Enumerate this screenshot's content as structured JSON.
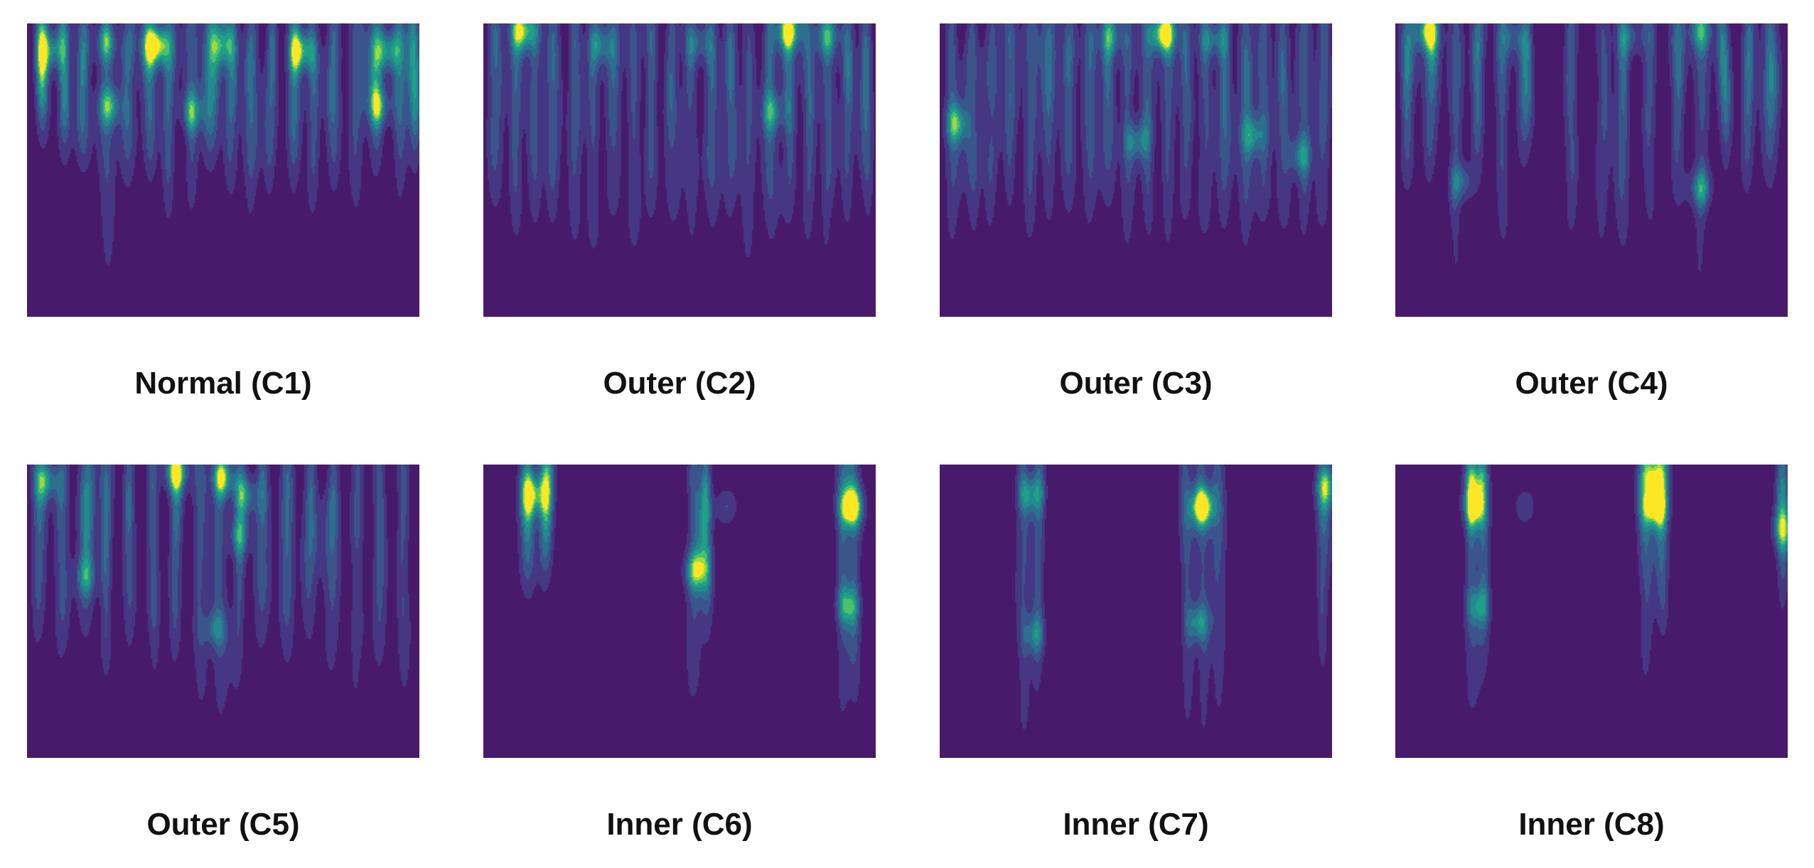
{
  "panels": [
    {
      "label": "Normal (C1)",
      "hotspots": [
        [
          0.33,
          0.07,
          1.0
        ],
        [
          0.7,
          0.09,
          0.75
        ],
        [
          0.92,
          0.09,
          0.65
        ],
        [
          0.06,
          0.09,
          0.6
        ],
        [
          0.2,
          0.06,
          0.55
        ],
        [
          0.5,
          0.07,
          0.5
        ],
        [
          0.21,
          0.28,
          0.6
        ],
        [
          0.9,
          0.28,
          0.6
        ],
        [
          0.42,
          0.3,
          0.55
        ]
      ],
      "streaks": [
        [
          0.04,
          0.3
        ],
        [
          0.09,
          0.38
        ],
        [
          0.14,
          0.42
        ],
        [
          0.2,
          0.74
        ],
        [
          0.26,
          0.5
        ],
        [
          0.31,
          0.44
        ],
        [
          0.36,
          0.56
        ],
        [
          0.42,
          0.6
        ],
        [
          0.47,
          0.4
        ],
        [
          0.52,
          0.5
        ],
        [
          0.57,
          0.58
        ],
        [
          0.62,
          0.52
        ],
        [
          0.68,
          0.48
        ],
        [
          0.73,
          0.56
        ],
        [
          0.78,
          0.5
        ],
        [
          0.84,
          0.6
        ],
        [
          0.89,
          0.44
        ],
        [
          0.95,
          0.52
        ],
        [
          0.99,
          0.4
        ]
      ]
    },
    {
      "label": "Outer (C2)",
      "hotspots": [
        [
          0.1,
          0.02,
          0.8
        ],
        [
          0.78,
          0.02,
          0.85
        ],
        [
          0.88,
          0.04,
          0.5
        ],
        [
          0.3,
          0.07,
          0.45
        ],
        [
          0.55,
          0.06,
          0.45
        ],
        [
          0.74,
          0.3,
          0.5
        ]
      ],
      "streaks": [
        [
          0.03,
          0.58
        ],
        [
          0.08,
          0.64
        ],
        [
          0.13,
          0.62
        ],
        [
          0.18,
          0.58
        ],
        [
          0.23,
          0.66
        ],
        [
          0.28,
          0.72
        ],
        [
          0.33,
          0.6
        ],
        [
          0.38,
          0.7
        ],
        [
          0.43,
          0.62
        ],
        [
          0.48,
          0.6
        ],
        [
          0.53,
          0.68
        ],
        [
          0.58,
          0.64
        ],
        [
          0.63,
          0.58
        ],
        [
          0.68,
          0.72
        ],
        [
          0.73,
          0.66
        ],
        [
          0.78,
          0.6
        ],
        [
          0.83,
          0.66
        ],
        [
          0.88,
          0.7
        ],
        [
          0.93,
          0.62
        ],
        [
          0.98,
          0.58
        ]
      ]
    },
    {
      "label": "Outer (C3)",
      "hotspots": [
        [
          0.57,
          0.03,
          1.0
        ],
        [
          0.44,
          0.04,
          0.45
        ],
        [
          0.7,
          0.05,
          0.5
        ],
        [
          0.04,
          0.34,
          0.65
        ],
        [
          0.5,
          0.4,
          0.55
        ],
        [
          0.8,
          0.38,
          0.5
        ],
        [
          0.92,
          0.45,
          0.5
        ]
      ],
      "streaks": [
        [
          0.03,
          0.7
        ],
        [
          0.08,
          0.62
        ],
        [
          0.13,
          0.66
        ],
        [
          0.18,
          0.56
        ],
        [
          0.23,
          0.64
        ],
        [
          0.28,
          0.6
        ],
        [
          0.33,
          0.58
        ],
        [
          0.38,
          0.62
        ],
        [
          0.43,
          0.56
        ],
        [
          0.48,
          0.68
        ],
        [
          0.53,
          0.64
        ],
        [
          0.58,
          0.7
        ],
        [
          0.63,
          0.6
        ],
        [
          0.68,
          0.66
        ],
        [
          0.73,
          0.62
        ],
        [
          0.78,
          0.68
        ],
        [
          0.83,
          0.6
        ],
        [
          0.88,
          0.64
        ],
        [
          0.93,
          0.66
        ],
        [
          0.98,
          0.62
        ]
      ]
    },
    {
      "label": "Outer (C4)",
      "hotspots": [
        [
          0.08,
          0.02,
          0.8
        ],
        [
          0.3,
          0.04,
          0.45
        ],
        [
          0.6,
          0.04,
          0.45
        ],
        [
          0.78,
          0.02,
          0.55
        ],
        [
          0.17,
          0.54,
          0.55
        ],
        [
          0.78,
          0.56,
          0.6
        ]
      ],
      "streaks": [
        [
          0.03,
          0.5
        ],
        [
          0.09,
          0.46
        ],
        [
          0.15,
          0.78
        ],
        [
          0.21,
          0.44
        ],
        [
          0.27,
          0.7
        ],
        [
          0.33,
          0.4
        ],
        [
          0.45,
          0.66
        ],
        [
          0.53,
          0.7
        ],
        [
          0.58,
          0.68
        ],
        [
          0.65,
          0.64
        ],
        [
          0.72,
          0.56
        ],
        [
          0.78,
          0.82
        ],
        [
          0.84,
          0.4
        ],
        [
          0.9,
          0.5
        ],
        [
          0.96,
          0.46
        ]
      ]
    },
    {
      "label": "Outer (C5)",
      "hotspots": [
        [
          0.38,
          0.02,
          0.9
        ],
        [
          0.5,
          0.04,
          0.8
        ],
        [
          0.56,
          0.1,
          0.6
        ],
        [
          0.05,
          0.05,
          0.65
        ],
        [
          0.54,
          0.24,
          0.5
        ],
        [
          0.48,
          0.56,
          0.5
        ],
        [
          0.15,
          0.38,
          0.45
        ]
      ],
      "streaks": [
        [
          0.03,
          0.54
        ],
        [
          0.09,
          0.6
        ],
        [
          0.15,
          0.5
        ],
        [
          0.2,
          0.64
        ],
        [
          0.26,
          0.56
        ],
        [
          0.32,
          0.62
        ],
        [
          0.38,
          0.58
        ],
        [
          0.44,
          0.74
        ],
        [
          0.49,
          0.8
        ],
        [
          0.54,
          0.7
        ],
        [
          0.6,
          0.56
        ],
        [
          0.66,
          0.62
        ],
        [
          0.72,
          0.54
        ],
        [
          0.78,
          0.64
        ],
        [
          0.84,
          0.74
        ],
        [
          0.9,
          0.6
        ],
        [
          0.96,
          0.7
        ]
      ]
    },
    {
      "label": "Inner (C6)",
      "hotspots": [
        [
          0.94,
          0.14,
          1.0
        ],
        [
          0.13,
          0.1,
          0.6
        ],
        [
          0.54,
          0.36,
          0.65
        ],
        [
          0.93,
          0.48,
          0.55
        ],
        [
          0.62,
          0.14,
          0.45
        ]
      ],
      "streaks": [
        [
          0.11,
          0.36
        ],
        [
          0.16,
          0.3
        ],
        [
          0.54,
          0.72
        ],
        [
          0.57,
          0.5
        ],
        [
          0.92,
          0.8
        ],
        [
          0.95,
          0.76
        ]
      ]
    },
    {
      "label": "Inner (C7)",
      "hotspots": [
        [
          0.67,
          0.14,
          1.0
        ],
        [
          0.23,
          0.1,
          0.55
        ],
        [
          0.66,
          0.54,
          0.6
        ],
        [
          0.99,
          0.07,
          0.6
        ],
        [
          0.24,
          0.58,
          0.45
        ]
      ],
      "streaks": [
        [
          0.21,
          0.86
        ],
        [
          0.25,
          0.7
        ],
        [
          0.63,
          0.82
        ],
        [
          0.67,
          0.86
        ],
        [
          0.71,
          0.78
        ],
        [
          0.98,
          0.62
        ]
      ]
    },
    {
      "label": "Inner (C8)",
      "hotspots": [
        [
          0.2,
          0.14,
          0.8
        ],
        [
          0.66,
          0.14,
          0.85
        ],
        [
          0.66,
          0.02,
          0.7
        ],
        [
          0.2,
          0.04,
          0.5
        ],
        [
          0.99,
          0.22,
          0.5
        ],
        [
          0.21,
          0.48,
          0.5
        ],
        [
          0.33,
          0.14,
          0.4
        ]
      ],
      "streaks": [
        [
          0.19,
          0.8
        ],
        [
          0.22,
          0.62
        ],
        [
          0.64,
          0.64
        ],
        [
          0.68,
          0.48
        ],
        [
          0.99,
          0.4
        ]
      ]
    }
  ]
}
